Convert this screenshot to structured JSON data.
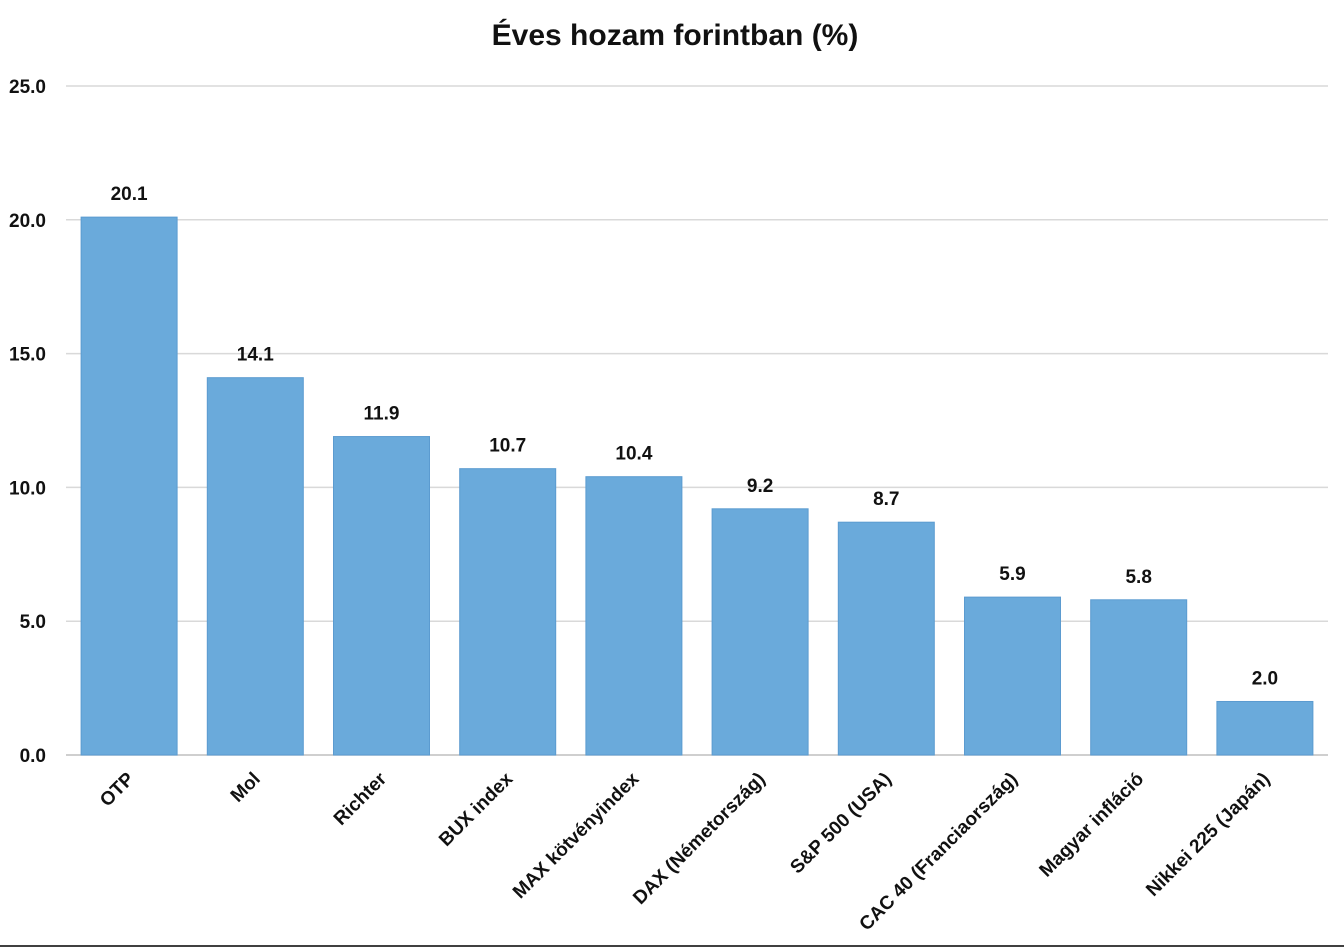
{
  "chart_data": {
    "type": "bar",
    "title": "Éves hozam forintban (%)",
    "xlabel": "",
    "ylabel": "",
    "categories": [
      "OTP",
      "Mol",
      "Richter",
      "BUX index",
      "MAX kötvényindex",
      "DAX (Németország)",
      "S&P 500 (USA)",
      "CAC 40 (Franciaország)",
      "Magyar infláció",
      "Nikkei 225 (Japán)"
    ],
    "values": [
      20.1,
      14.1,
      11.9,
      10.7,
      10.4,
      9.2,
      8.7,
      5.9,
      5.8,
      2.0
    ],
    "data_labels": [
      "20.1",
      "14.1",
      "11.9",
      "10.7",
      "10.4",
      "9.2",
      "8.7",
      "5.9",
      "5.8",
      "2.0"
    ],
    "ylim": [
      0,
      25
    ],
    "yticks": [
      "0.0",
      "5.0",
      "10.0",
      "15.0",
      "20.0",
      "25.0"
    ],
    "grid": true,
    "legend": "none",
    "bar_color": "#6aaadb"
  }
}
